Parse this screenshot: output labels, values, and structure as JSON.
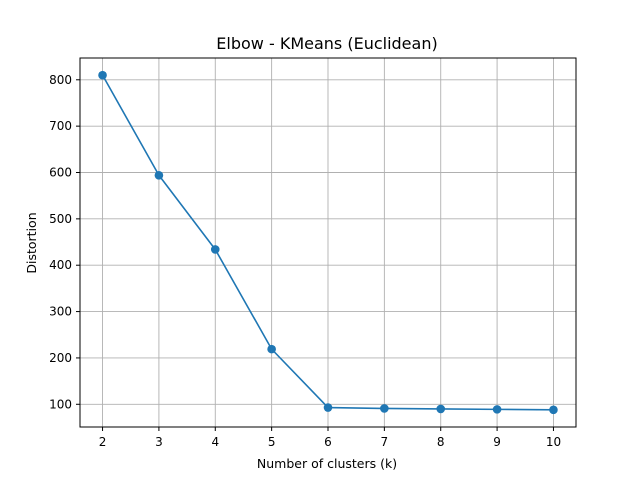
{
  "chart_data": {
    "type": "line",
    "title": "Elbow - KMeans (Euclidean)",
    "xlabel": "Number of clusters (k)",
    "ylabel": "Distortion",
    "x": [
      2,
      3,
      4,
      5,
      6,
      7,
      8,
      9,
      10
    ],
    "series": [
      {
        "values": [
          810,
          594,
          434,
          219,
          93,
          91,
          90,
          89,
          88
        ],
        "color": "#1f77b4",
        "marker": "circle"
      }
    ],
    "xticks": [
      2,
      3,
      4,
      5,
      6,
      7,
      8,
      9,
      10
    ],
    "yticks": [
      100,
      200,
      300,
      400,
      500,
      600,
      700,
      800
    ],
    "xlim": [
      1.6,
      10.4
    ],
    "ylim": [
      51,
      847
    ],
    "grid": true,
    "legend": false
  }
}
